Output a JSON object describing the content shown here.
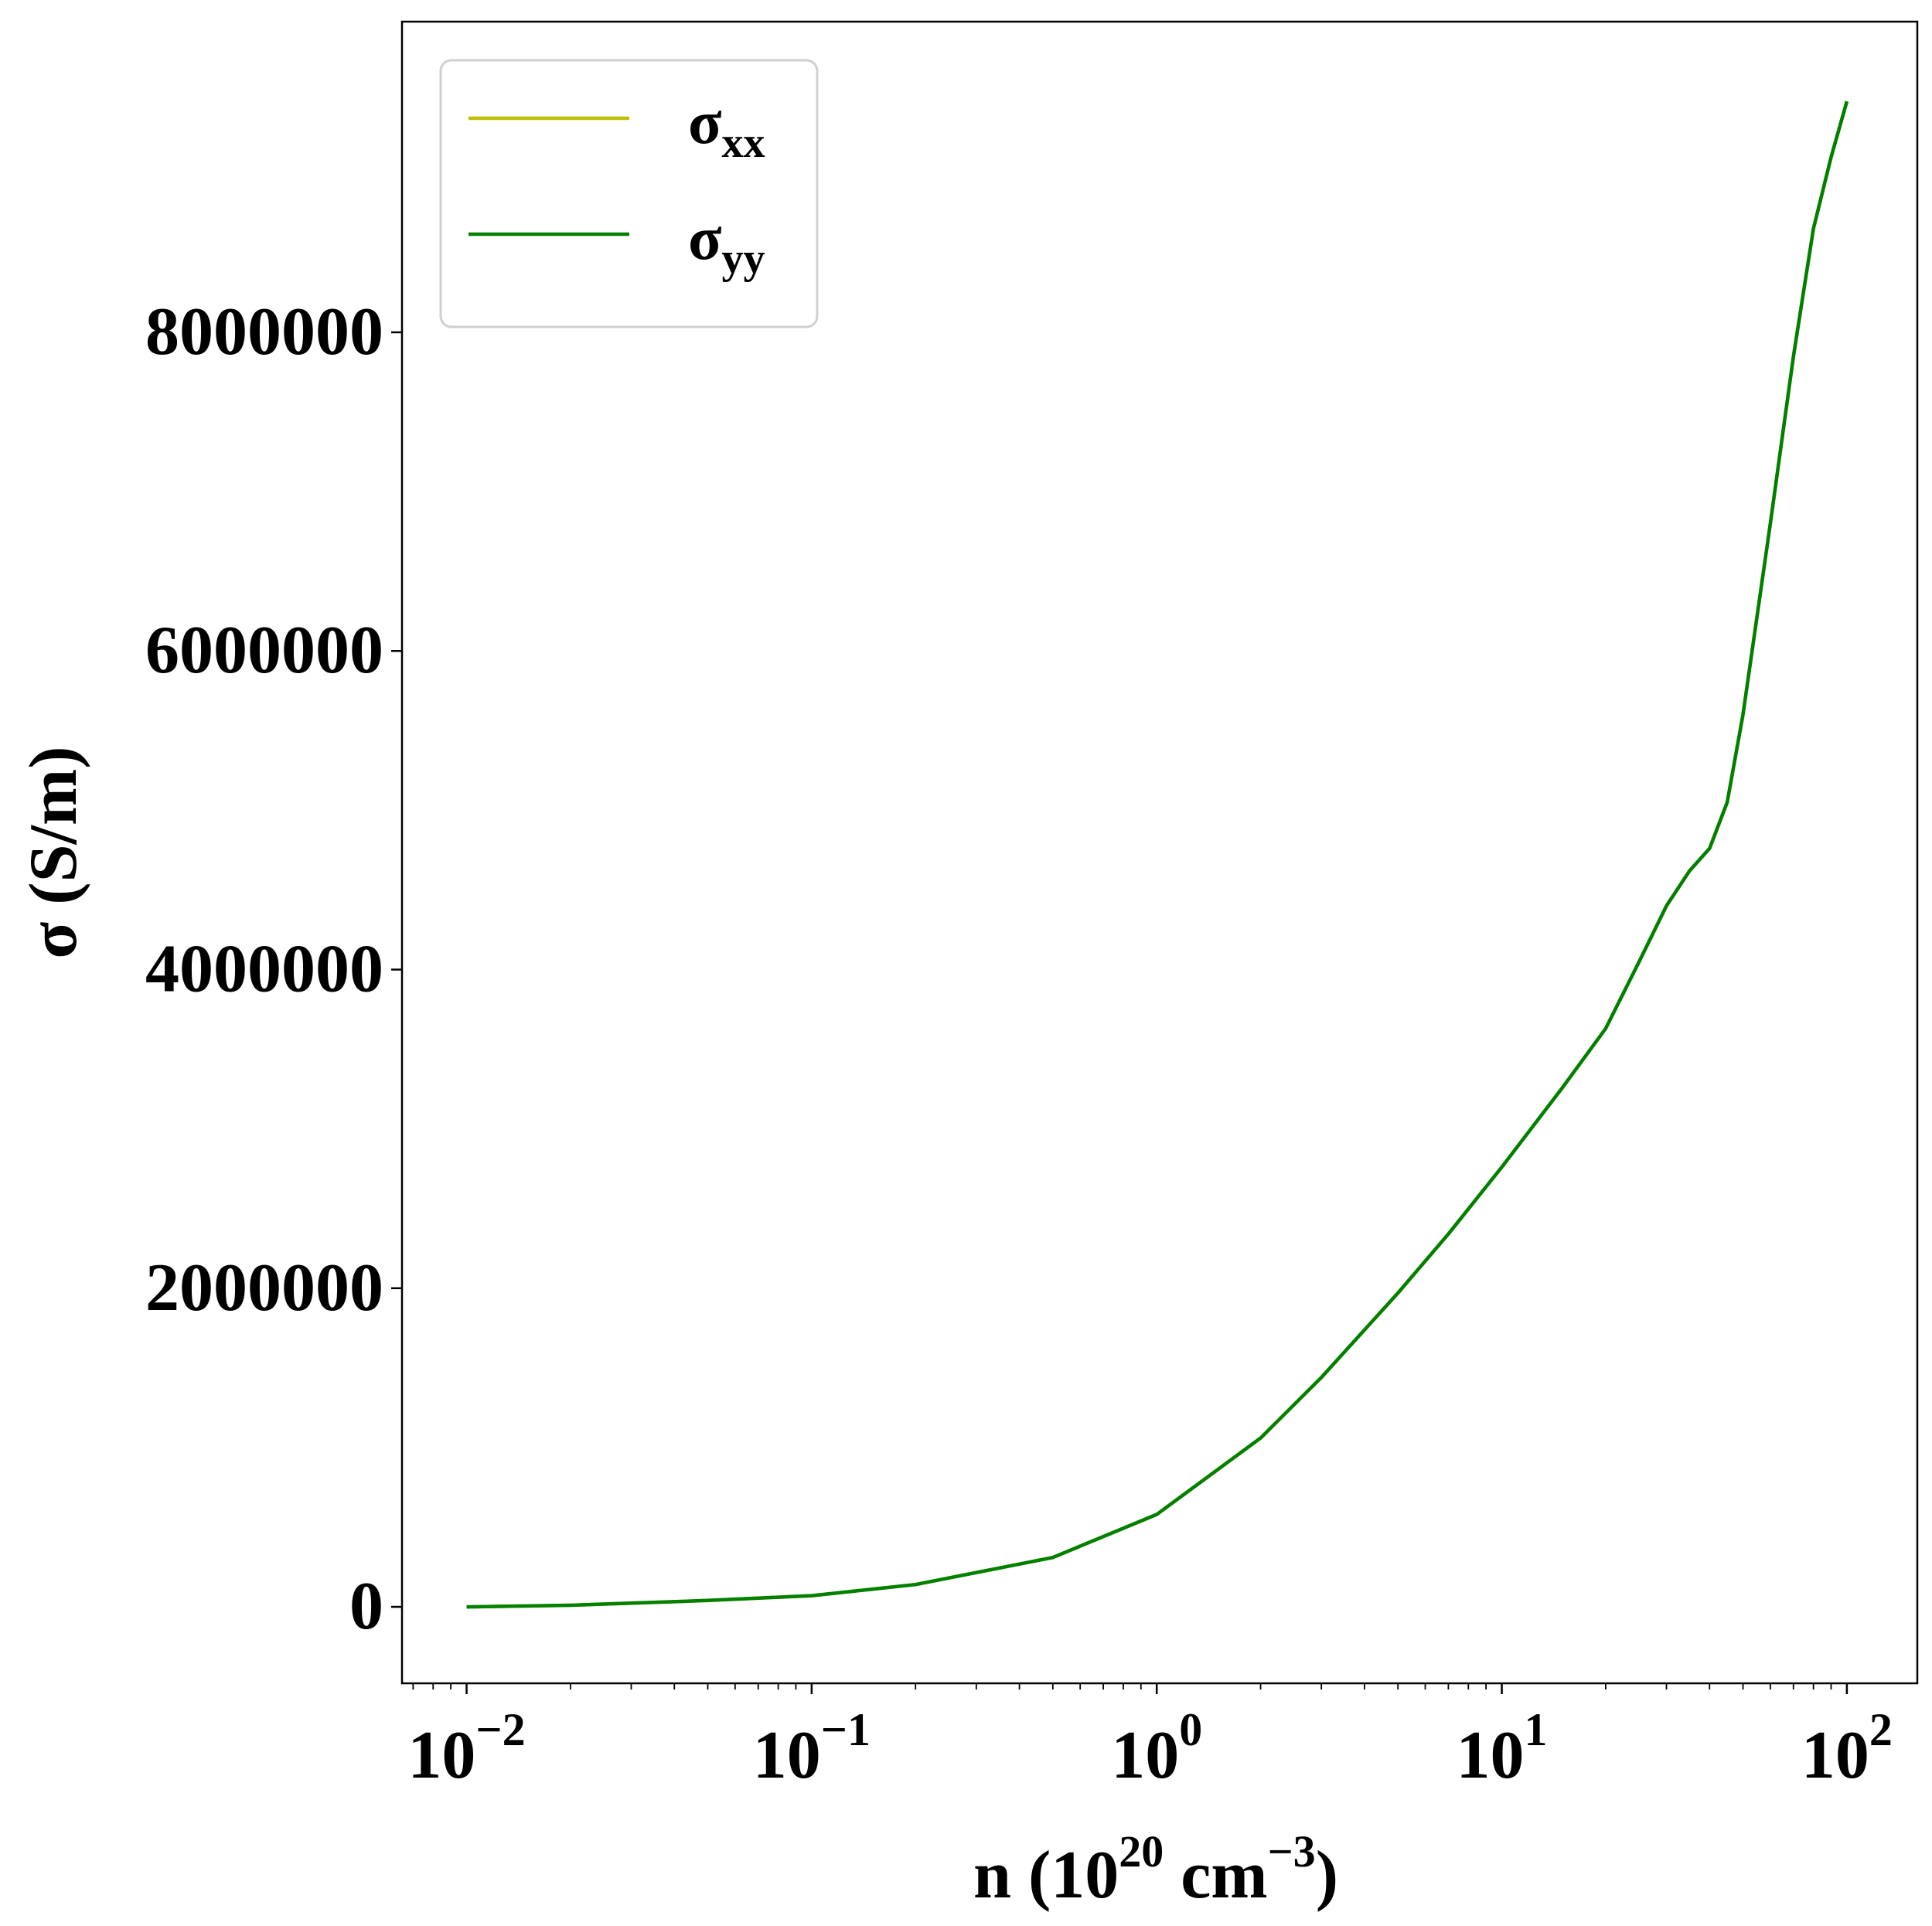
{
  "chart_data": {
    "type": "line",
    "xscale": "log",
    "xlim": [
      0.0065,
      160
    ],
    "ylim": [
      -480000,
      9950000
    ],
    "xlabel": {
      "base": "n (10",
      "sup1": "20",
      "mid": " cm",
      "sup2": "−3",
      "end": ")"
    },
    "ylabel": "σ (S/m)",
    "x_ticks": [
      {
        "value": 0.01,
        "base": "10",
        "exp": "−2"
      },
      {
        "value": 0.1,
        "base": "10",
        "exp": "−1"
      },
      {
        "value": 1,
        "base": "10",
        "exp": "0"
      },
      {
        "value": 10,
        "base": "10",
        "exp": "1"
      },
      {
        "value": 100,
        "base": "10",
        "exp": "2"
      }
    ],
    "y_ticks": [
      {
        "value": 0,
        "label": "0"
      },
      {
        "value": 2000000,
        "label": "2000000"
      },
      {
        "value": 4000000,
        "label": "4000000"
      },
      {
        "value": 6000000,
        "label": "6000000"
      },
      {
        "value": 8000000,
        "label": "8000000"
      }
    ],
    "legend": {
      "position": "top-left"
    },
    "series": [
      {
        "name": "σxx",
        "name_main": "σ",
        "name_sub": "xx",
        "color": "#bfbf00",
        "x": [
          0.01,
          0.02,
          0.05,
          0.1,
          0.2,
          0.5,
          1,
          2,
          3,
          5,
          7,
          10,
          15,
          20,
          25,
          30,
          35,
          40,
          45,
          50,
          60,
          70,
          80,
          90,
          100
        ],
        "y": [
          0,
          10000,
          40000,
          70000,
          140000,
          310000,
          580000,
          1060000,
          1440000,
          1970000,
          2340000,
          2760000,
          3260000,
          3630000,
          4050000,
          4400000,
          4620000,
          4760000,
          5050000,
          5600000,
          6800000,
          7850000,
          8650000,
          9100000,
          9450000
        ]
      },
      {
        "name": "σyy",
        "name_main": "σ",
        "name_sub": "yy",
        "color": "#008000",
        "x": [
          0.01,
          0.02,
          0.05,
          0.1,
          0.2,
          0.5,
          1,
          2,
          3,
          5,
          7,
          10,
          15,
          20,
          25,
          30,
          35,
          40,
          45,
          50,
          60,
          70,
          80,
          90,
          100
        ],
        "y": [
          0,
          10000,
          40000,
          70000,
          140000,
          310000,
          580000,
          1060000,
          1440000,
          1970000,
          2340000,
          2760000,
          3260000,
          3630000,
          4050000,
          4400000,
          4620000,
          4760000,
          5050000,
          5600000,
          6800000,
          7850000,
          8650000,
          9100000,
          9450000
        ]
      }
    ]
  }
}
